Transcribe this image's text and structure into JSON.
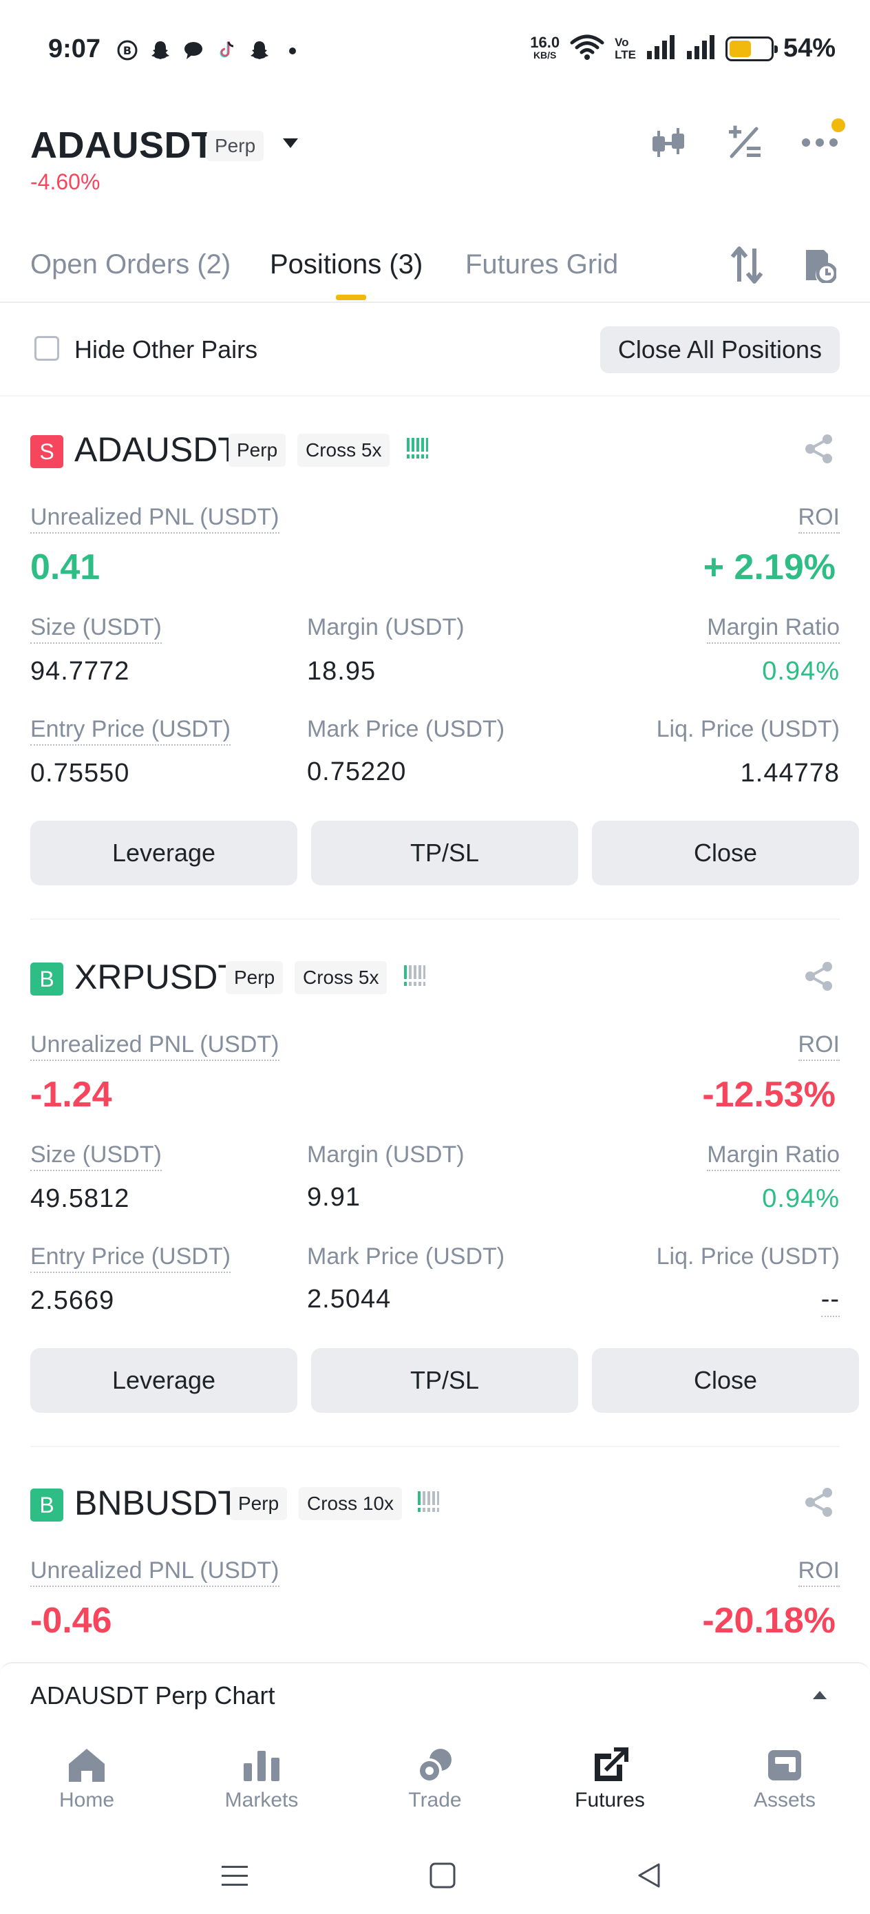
{
  "status_bar": {
    "time": "9:07",
    "notification_icons": [
      "b-circle-icon",
      "snapchat-icon",
      "chat-bubble-icon",
      "tiktok-icon",
      "snapchat-icon",
      "dot-icon"
    ],
    "network_speed_value": "16.0",
    "network_speed_unit": "KB/S",
    "volte_top": "Vo",
    "volte_bottom": "LTE",
    "battery_percent": "54%",
    "battery_level": 0.54
  },
  "header": {
    "symbol": "ADAUSDT",
    "contract_type": "Perp",
    "change": "-4.60%"
  },
  "tabs": [
    {
      "label": "Open Orders (2)",
      "active": false
    },
    {
      "label": "Positions (3)",
      "active": true
    },
    {
      "label": "Futures Grid",
      "active": false
    }
  ],
  "filter": {
    "hide_other_pairs_label": "Hide Other Pairs",
    "hide_other_pairs_checked": false,
    "close_all_label": "Close All Positions"
  },
  "labels": {
    "unrealized_pnl": "Unrealized PNL (USDT)",
    "roi": "ROI",
    "size": "Size (USDT)",
    "margin": "Margin (USDT)",
    "margin_ratio": "Margin Ratio",
    "entry_price": "Entry Price (USDT)",
    "mark_price": "Mark Price (USDT)",
    "liq_price": "Liq. Price (USDT)",
    "leverage_btn": "Leverage",
    "tpsl_btn": "TP/SL",
    "close_btn": "Close"
  },
  "positions": [
    {
      "side": "S",
      "symbol": "ADAUSDT",
      "type": "Perp",
      "margin_mode": "Cross 5x",
      "adl_level": 5,
      "unrealized_pnl": "0.41",
      "roi": "+ 2.19%",
      "size": "94.7772",
      "margin": "18.95",
      "margin_ratio": "0.94%",
      "entry_price": "0.75550",
      "mark_price": "0.75220",
      "liq_price": "1.44778"
    },
    {
      "side": "B",
      "symbol": "XRPUSDT",
      "type": "Perp",
      "margin_mode": "Cross 5x",
      "adl_level": 1,
      "unrealized_pnl": "-1.24",
      "roi": "-12.53%",
      "size": "49.5812",
      "margin": "9.91",
      "margin_ratio": "0.94%",
      "entry_price": "2.5669",
      "mark_price": "2.5044",
      "liq_price": "--"
    },
    {
      "side": "B",
      "symbol": "BNBUSDT",
      "type": "Perp",
      "margin_mode": "Cross 10x",
      "adl_level": 1,
      "unrealized_pnl": "-0.46",
      "roi": "-20.18%"
    }
  ],
  "chart_bar": {
    "label": "ADAUSDT Perp Chart"
  },
  "bottom_nav": [
    {
      "label": "Home",
      "icon": "home-icon",
      "active": false
    },
    {
      "label": "Markets",
      "icon": "bar-chart-icon",
      "active": false
    },
    {
      "label": "Trade",
      "icon": "trade-icon",
      "active": false
    },
    {
      "label": "Futures",
      "icon": "futures-icon",
      "active": true
    },
    {
      "label": "Assets",
      "icon": "wallet-icon",
      "active": false
    }
  ],
  "colors": {
    "accent": "#f0b90b",
    "positive": "#2ebd85",
    "negative": "#f6465d",
    "text_primary": "#1e2329",
    "text_secondary": "#848e9c",
    "button_bg": "#eaecef"
  }
}
